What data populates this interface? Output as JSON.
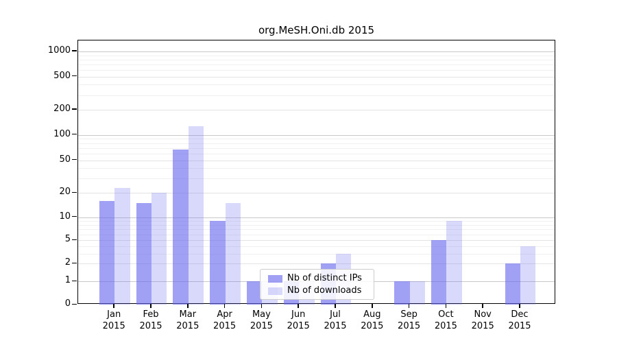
{
  "title": "org.MeSH.Oni.db 2015",
  "legend": {
    "items": [
      {
        "label": "Nb of distinct IPs",
        "key": "distinct_ips"
      },
      {
        "label": "Nb of downloads",
        "key": "downloads"
      }
    ]
  },
  "chart_data": {
    "type": "bar",
    "title": "org.MeSH.Oni.db 2015",
    "categories": [
      "Jan 2015",
      "Feb 2015",
      "Mar 2015",
      "Apr 2015",
      "May 2015",
      "Jun 2015",
      "Jul 2015",
      "Aug 2015",
      "Sep 2015",
      "Oct 2015",
      "Nov 2015",
      "Dec 2015"
    ],
    "series": [
      {
        "name": "Nb of distinct IPs",
        "key": "distinct_ips",
        "values": [
          16,
          15,
          67,
          9,
          1,
          1,
          2,
          0,
          1,
          5,
          0,
          2
        ]
      },
      {
        "name": "Nb of downloads",
        "key": "downloads",
        "values": [
          23,
          20,
          127,
          15,
          1,
          1,
          3,
          0,
          1,
          9,
          0,
          4
        ]
      }
    ],
    "yscale": "log10(1+x)",
    "ylim": [
      0,
      1000
    ],
    "yticks": [
      0,
      1,
      2,
      5,
      10,
      20,
      50,
      100,
      200,
      500,
      1000
    ],
    "minor_yticks": [
      3,
      4,
      6,
      7,
      8,
      9,
      30,
      40,
      60,
      70,
      80,
      90,
      300,
      400,
      600,
      700,
      800,
      900
    ],
    "grid": true,
    "legend_position": "lower center inside plot",
    "colors": {
      "distinct_ips": "rgba(102,102,238,0.62)",
      "downloads": "rgba(102,102,238,0.25)",
      "grid_decade": "#c9c9c9",
      "grid_labeled": "#e3e3e3",
      "grid_minor": "#f0f0f0",
      "axis": "#000000"
    }
  }
}
